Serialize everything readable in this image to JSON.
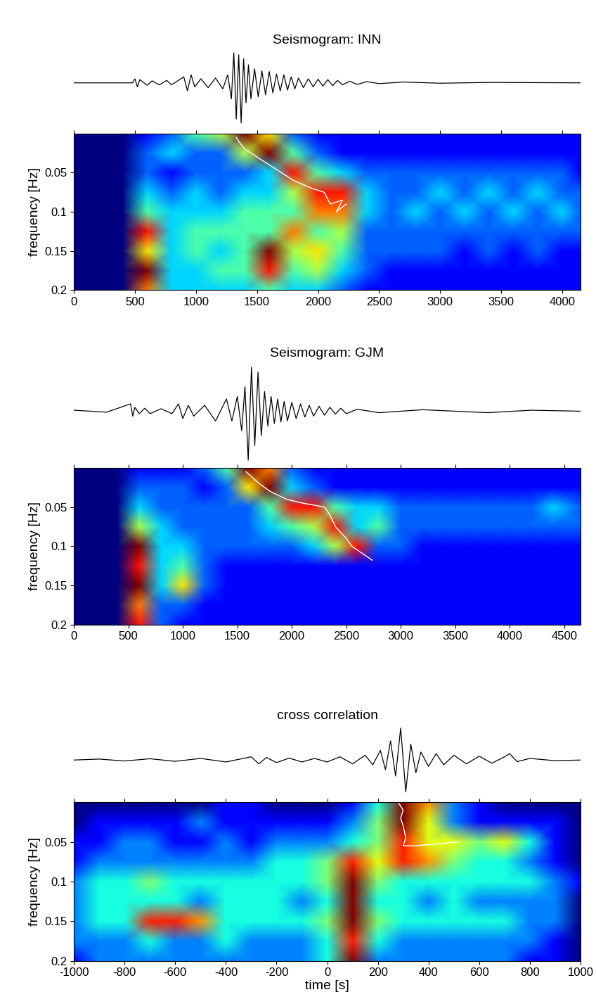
{
  "chart_data": [
    {
      "type": "spectrogram",
      "title": "Seismogram: INN",
      "ylabel": "frequency [Hz]",
      "xlim": [
        0,
        4150
      ],
      "xticks": [
        0,
        500,
        1000,
        1500,
        2000,
        2500,
        3000,
        3500,
        4000
      ],
      "ylim": [
        0.2,
        0
      ],
      "yticks": [
        0.05,
        0.1,
        0.15,
        0.2
      ],
      "waveform": {
        "x": [
          0,
          480,
          500,
          520,
          540,
          600,
          640,
          700,
          760,
          800,
          900,
          930,
          960,
          990,
          1040,
          1100,
          1160,
          1220,
          1260,
          1290,
          1310,
          1330,
          1350,
          1370,
          1390,
          1410,
          1430,
          1450,
          1480,
          1510,
          1540,
          1570,
          1600,
          1630,
          1660,
          1690,
          1720,
          1750,
          1780,
          1810,
          1840,
          1880,
          1920,
          1960,
          2000,
          2040,
          2080,
          2120,
          2160,
          2200,
          2260,
          2320,
          2400,
          2500,
          2700,
          3000,
          3400,
          4150
        ],
        "values": [
          0,
          0,
          0.1,
          -0.1,
          0.08,
          -0.06,
          0.05,
          -0.05,
          0.06,
          -0.05,
          0.15,
          -0.2,
          0.2,
          -0.1,
          0.1,
          -0.12,
          0.12,
          -0.15,
          0.2,
          -0.4,
          0.75,
          -0.9,
          0.7,
          -1.0,
          0.6,
          -0.5,
          0.45,
          -0.4,
          0.35,
          -0.35,
          0.3,
          -0.3,
          0.28,
          -0.25,
          0.22,
          -0.2,
          0.2,
          -0.18,
          0.15,
          -0.15,
          0.12,
          -0.12,
          0.1,
          -0.1,
          0.09,
          -0.08,
          0.08,
          -0.07,
          0.06,
          -0.05,
          0.04,
          -0.04,
          0.03,
          -0.02,
          0.02,
          -0.01,
          0.01,
          0
        ]
      },
      "times": [
        0,
        200,
        400,
        600,
        800,
        1000,
        1200,
        1400,
        1600,
        1800,
        2000,
        2200,
        2400,
        2600,
        2800,
        3000,
        3200,
        3400,
        3600,
        3800,
        4000,
        4150
      ],
      "frequencies": [
        0.0,
        0.025,
        0.05,
        0.075,
        0.1,
        0.125,
        0.15,
        0.175,
        0.2
      ],
      "cells": [
        [
          0,
          0,
          0,
          1,
          2,
          4,
          5,
          9,
          6,
          2,
          1,
          1,
          1,
          1,
          1,
          1,
          1,
          1,
          1,
          1,
          1,
          1
        ],
        [
          0,
          0,
          0,
          2,
          3,
          2,
          2,
          5,
          9,
          4,
          2,
          1,
          1,
          1,
          1,
          1,
          1,
          1,
          1,
          1,
          1,
          1
        ],
        [
          0,
          0,
          0,
          2,
          1,
          2,
          2,
          2,
          3,
          8,
          4,
          3,
          2,
          2,
          2,
          2,
          2,
          2,
          2,
          2,
          2,
          1
        ],
        [
          0,
          0,
          0,
          3,
          2,
          3,
          2,
          3,
          3,
          5,
          8,
          8,
          3,
          2,
          2,
          3,
          2,
          3,
          2,
          3,
          2,
          2
        ],
        [
          0,
          0,
          0,
          4,
          3,
          3,
          3,
          4,
          4,
          4,
          7,
          7,
          3,
          2,
          3,
          2,
          3,
          2,
          3,
          2,
          3,
          2
        ],
        [
          0,
          0,
          0,
          8,
          3,
          4,
          4,
          4,
          4,
          7,
          4,
          5,
          2,
          2,
          2,
          2,
          2,
          2,
          2,
          2,
          2,
          2
        ],
        [
          0,
          0,
          0,
          6,
          3,
          4,
          3,
          4,
          9,
          5,
          6,
          4,
          2,
          2,
          2,
          2,
          1,
          2,
          1,
          2,
          1,
          1
        ],
        [
          0,
          0,
          0,
          9,
          3,
          3,
          4,
          4,
          8,
          4,
          5,
          3,
          2,
          1,
          1,
          1,
          1,
          1,
          1,
          1,
          1,
          1
        ],
        [
          0,
          0,
          0,
          7,
          3,
          3,
          3,
          3,
          4,
          3,
          3,
          2,
          1,
          1,
          1,
          1,
          1,
          1,
          1,
          1,
          1,
          1
        ]
      ],
      "ridge": {
        "x": [
          1330,
          1350,
          1400,
          1500,
          1650,
          1800,
          1950,
          2050,
          2100,
          2200,
          2150,
          2230
        ],
        "y": [
          0.005,
          0.01,
          0.02,
          0.03,
          0.045,
          0.06,
          0.07,
          0.075,
          0.09,
          0.085,
          0.1,
          0.09
        ]
      }
    },
    {
      "type": "spectrogram",
      "title": "Seismogram: GJM",
      "ylabel": "frequency [Hz]",
      "xlim": [
        0,
        4650
      ],
      "xticks": [
        0,
        500,
        1000,
        1500,
        2000,
        2500,
        3000,
        3500,
        4000,
        4500
      ],
      "ylim": [
        0.2,
        0
      ],
      "yticks": [
        0.05,
        0.1,
        0.15,
        0.2
      ],
      "waveform": {
        "x": [
          0,
          300,
          520,
          540,
          560,
          600,
          650,
          700,
          800,
          900,
          960,
          1000,
          1050,
          1100,
          1200,
          1300,
          1400,
          1450,
          1500,
          1540,
          1570,
          1600,
          1630,
          1660,
          1690,
          1720,
          1750,
          1780,
          1810,
          1840,
          1870,
          1900,
          1930,
          1960,
          2000,
          2040,
          2080,
          2120,
          2160,
          2200,
          2250,
          2300,
          2350,
          2400,
          2450,
          2500,
          2600,
          2800,
          3200,
          3800,
          4200,
          4650
        ],
        "values": [
          0.02,
          -0.02,
          0.15,
          -0.1,
          0.08,
          -0.05,
          0.06,
          -0.05,
          0.05,
          -0.05,
          0.15,
          -0.15,
          0.12,
          -0.1,
          0.12,
          -0.2,
          0.25,
          -0.2,
          0.3,
          -0.4,
          0.5,
          -1.0,
          0.9,
          -0.7,
          0.8,
          -0.5,
          0.4,
          -0.3,
          0.3,
          -0.25,
          0.25,
          -0.22,
          0.2,
          -0.2,
          0.18,
          -0.15,
          0.15,
          -0.12,
          0.12,
          -0.1,
          0.1,
          -0.08,
          0.08,
          -0.06,
          0.06,
          -0.05,
          0.04,
          -0.03,
          0.03,
          -0.03,
          0.02,
          0
        ]
      },
      "times": [
        0,
        200,
        400,
        600,
        800,
        1000,
        1200,
        1400,
        1600,
        1800,
        2000,
        2200,
        2400,
        2600,
        2800,
        3000,
        3200,
        3400,
        3600,
        3800,
        4000,
        4200,
        4400,
        4650
      ],
      "frequencies": [
        0.0,
        0.025,
        0.05,
        0.075,
        0.1,
        0.125,
        0.15,
        0.175,
        0.2
      ],
      "cells": [
        [
          0,
          0,
          0,
          1,
          1,
          1,
          2,
          4,
          9,
          7,
          2,
          1,
          1,
          1,
          1,
          1,
          1,
          1,
          1,
          1,
          1,
          1,
          1,
          1
        ],
        [
          0,
          0,
          0,
          2,
          2,
          2,
          1,
          2,
          6,
          9,
          3,
          2,
          1,
          1,
          1,
          1,
          1,
          1,
          1,
          1,
          1,
          1,
          1,
          1
        ],
        [
          0,
          0,
          0,
          3,
          2,
          2,
          2,
          2,
          2,
          4,
          8,
          8,
          4,
          3,
          3,
          2,
          2,
          2,
          2,
          2,
          2,
          2,
          3,
          2
        ],
        [
          0,
          0,
          0,
          5,
          3,
          2,
          2,
          2,
          2,
          3,
          4,
          5,
          8,
          3,
          4,
          2,
          2,
          2,
          2,
          2,
          2,
          2,
          2,
          2
        ],
        [
          0,
          0,
          0,
          9,
          3,
          3,
          2,
          2,
          2,
          2,
          2,
          3,
          5,
          8,
          2,
          2,
          1,
          1,
          1,
          1,
          1,
          1,
          1,
          1
        ],
        [
          0,
          0,
          0,
          8,
          3,
          4,
          2,
          1,
          1,
          1,
          1,
          1,
          1,
          1,
          1,
          1,
          1,
          1,
          1,
          1,
          1,
          1,
          1,
          1
        ],
        [
          0,
          0,
          0,
          9,
          3,
          6,
          2,
          1,
          1,
          1,
          1,
          1,
          1,
          1,
          1,
          1,
          1,
          1,
          1,
          1,
          1,
          1,
          1,
          1
        ],
        [
          0,
          0,
          0,
          7,
          2,
          2,
          1,
          1,
          1,
          1,
          1,
          1,
          1,
          1,
          1,
          1,
          1,
          1,
          1,
          1,
          1,
          1,
          1,
          1
        ],
        [
          0,
          0,
          0,
          8,
          2,
          1,
          1,
          1,
          1,
          1,
          1,
          1,
          1,
          1,
          1,
          1,
          1,
          1,
          1,
          1,
          1,
          1,
          1,
          1
        ]
      ],
      "ridge": {
        "x": [
          1580,
          1620,
          1700,
          1800,
          1950,
          2100,
          2300,
          2350,
          2400,
          2500,
          2550,
          2740
        ],
        "y": [
          0.005,
          0.01,
          0.02,
          0.03,
          0.04,
          0.045,
          0.05,
          0.06,
          0.075,
          0.09,
          0.1,
          0.118
        ]
      }
    },
    {
      "type": "spectrogram",
      "title": "cross correlation",
      "ylabel": "frequency [Hz]",
      "xlabel": "time [s]",
      "xlim": [
        -1000,
        1000
      ],
      "xticks": [
        -1000,
        -800,
        -600,
        -400,
        -200,
        0,
        200,
        400,
        600,
        800,
        1000
      ],
      "ylim": [
        0.2,
        0
      ],
      "yticks": [
        0.05,
        0.1,
        0.15,
        0.2
      ],
      "waveform": {
        "x": [
          -1000,
          -900,
          -800,
          -700,
          -600,
          -500,
          -400,
          -300,
          -270,
          -240,
          -200,
          -150,
          -100,
          -50,
          0,
          50,
          100,
          150,
          180,
          210,
          230,
          250,
          270,
          290,
          310,
          330,
          350,
          370,
          400,
          430,
          460,
          500,
          550,
          600,
          650,
          700,
          720,
          750,
          800,
          900,
          1000
        ],
        "values": [
          0,
          0.03,
          -0.03,
          0.04,
          -0.04,
          0.05,
          -0.06,
          0.1,
          -0.12,
          0.08,
          -0.08,
          0.06,
          -0.06,
          0.05,
          -0.06,
          0.1,
          -0.12,
          0.15,
          -0.15,
          0.3,
          -0.3,
          0.6,
          -0.5,
          1.0,
          -1.0,
          0.5,
          -0.4,
          0.25,
          -0.2,
          0.2,
          -0.15,
          0.15,
          -0.12,
          0.12,
          -0.1,
          0.1,
          0.2,
          -0.05,
          0.05,
          -0.02,
          0
        ]
      },
      "times": [
        -1000,
        -900,
        -800,
        -700,
        -600,
        -500,
        -400,
        -300,
        -200,
        -100,
        0,
        100,
        200,
        300,
        400,
        500,
        600,
        700,
        800,
        900,
        1000
      ],
      "frequencies": [
        0.0,
        0.025,
        0.05,
        0.075,
        0.1,
        0.125,
        0.15,
        0.175,
        0.2
      ],
      "cells": [
        [
          1,
          1,
          1,
          1,
          1,
          1,
          2,
          2,
          1,
          1,
          1,
          2,
          4,
          9,
          7,
          3,
          2,
          1,
          1,
          1,
          1
        ],
        [
          1,
          2,
          2,
          2,
          2,
          3,
          2,
          2,
          2,
          2,
          2,
          3,
          5,
          9,
          6,
          3,
          2,
          2,
          2,
          2,
          1
        ],
        [
          2,
          2,
          3,
          3,
          2,
          2,
          3,
          2,
          3,
          3,
          3,
          4,
          5,
          8,
          6,
          6,
          5,
          6,
          4,
          2,
          1
        ],
        [
          2,
          3,
          3,
          3,
          3,
          3,
          3,
          3,
          4,
          4,
          5,
          8,
          6,
          8,
          7,
          5,
          4,
          4,
          3,
          2,
          1
        ],
        [
          3,
          4,
          4,
          5,
          4,
          4,
          4,
          4,
          4,
          4,
          5,
          9,
          5,
          4,
          4,
          4,
          4,
          4,
          4,
          3,
          2
        ],
        [
          3,
          4,
          4,
          4,
          4,
          3,
          4,
          4,
          4,
          3,
          4,
          9,
          4,
          4,
          3,
          4,
          3,
          3,
          3,
          3,
          1
        ],
        [
          3,
          4,
          4,
          8,
          8,
          7,
          4,
          4,
          4,
          4,
          5,
          9,
          5,
          4,
          4,
          4,
          4,
          4,
          3,
          3,
          1
        ],
        [
          3,
          3,
          3,
          4,
          3,
          3,
          4,
          3,
          3,
          3,
          4,
          8,
          4,
          3,
          3,
          3,
          3,
          3,
          3,
          2,
          1
        ],
        [
          2,
          3,
          3,
          3,
          3,
          3,
          3,
          3,
          3,
          3,
          4,
          9,
          3,
          3,
          3,
          3,
          3,
          3,
          2,
          2,
          1
        ]
      ],
      "ridge": {
        "x": [
          280,
          300,
          290,
          300,
          310,
          300,
          350,
          450,
          520
        ],
        "y": [
          0.0,
          0.01,
          0.02,
          0.03,
          0.045,
          0.055,
          0.055,
          0.052,
          0.05
        ]
      }
    }
  ]
}
